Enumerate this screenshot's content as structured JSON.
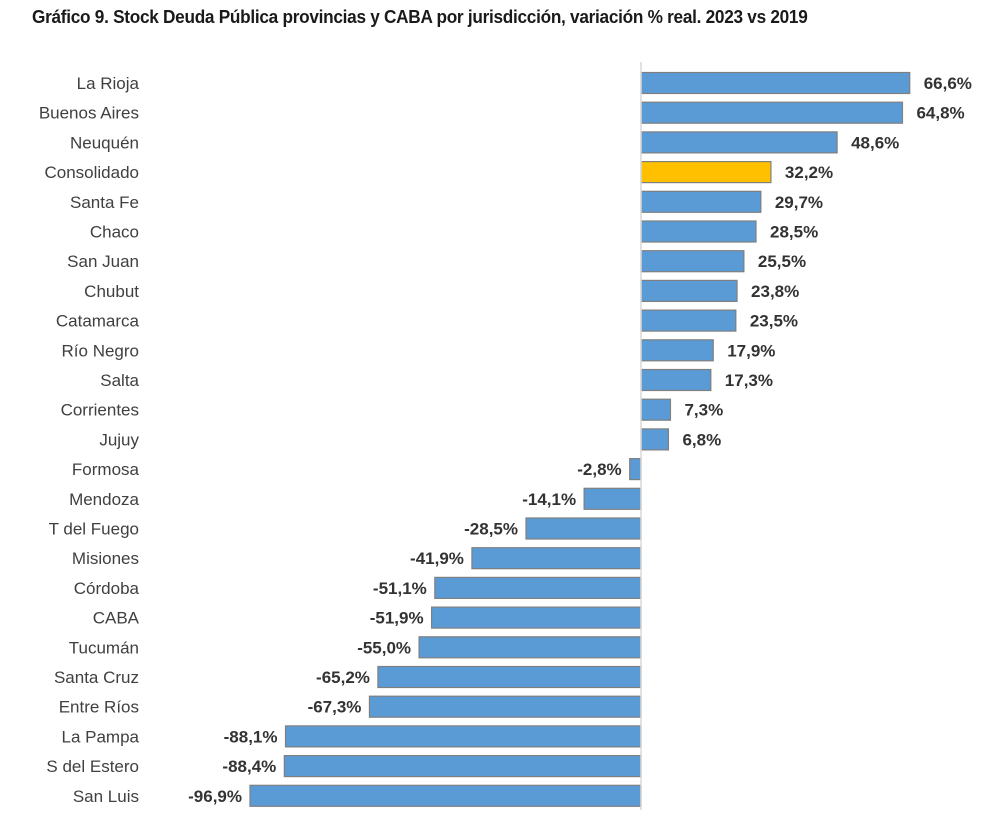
{
  "chart_data": {
    "type": "bar",
    "orientation": "horizontal",
    "title": "Gráfico 9. Stock Deuda Pública provincias y CABA por jurisdicción, variación % real. 2023 vs 2019",
    "xlabel": "",
    "ylabel": "",
    "grid": false,
    "legend": "none",
    "xlim": [
      -100,
      70
    ],
    "categories": [
      "La Rioja",
      "Buenos Aires",
      "Neuquén",
      "Consolidado",
      "Santa Fe",
      "Chaco",
      "San Juan",
      "Chubut",
      "Catamarca",
      "Río Negro",
      "Salta",
      "Corrientes",
      "Jujuy",
      "Formosa",
      "Mendoza",
      "T del Fuego",
      "Misiones",
      "Córdoba",
      "CABA",
      "Tucumán",
      "Santa Cruz",
      "Entre Ríos",
      "La Pampa",
      "S del Estero",
      "San Luis"
    ],
    "values": [
      66.6,
      64.8,
      48.6,
      32.2,
      29.7,
      28.5,
      25.5,
      23.8,
      23.5,
      17.9,
      17.3,
      7.3,
      6.8,
      -2.8,
      -14.1,
      -28.5,
      -41.9,
      -51.1,
      -51.9,
      -55.0,
      -65.2,
      -67.3,
      -88.1,
      -88.4,
      -96.9
    ],
    "data_labels": [
      "66,6%",
      "64,8%",
      "48,6%",
      "32,2%",
      "29,7%",
      "28,5%",
      "25,5%",
      "23,8%",
      "23,5%",
      "17,9%",
      "17,3%",
      "7,3%",
      "6,8%",
      "-2,8%",
      "-14,1%",
      "-28,5%",
      "-41,9%",
      "-51,1%",
      "-51,9%",
      "-55,0%",
      "-65,2%",
      "-67,3%",
      "-88,1%",
      "-88,4%",
      "-96,9%"
    ],
    "highlight_category": "Consolidado",
    "colors": {
      "bar": "#5B9BD5",
      "highlight": "#FFC000",
      "bar_border": "#7f7f7f",
      "axis": "#d9d9d9"
    }
  }
}
